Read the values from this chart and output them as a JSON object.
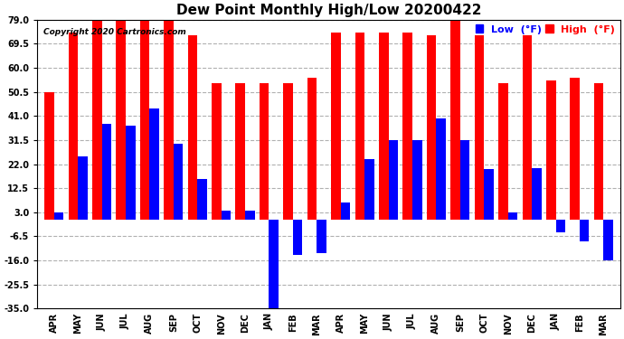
{
  "title": "Dew Point Monthly High/Low 20200422",
  "copyright": "Copyright 2020 Cartronics.com",
  "months": [
    "APR",
    "MAY",
    "JUN",
    "JUL",
    "AUG",
    "SEP",
    "OCT",
    "NOV",
    "DEC",
    "JAN",
    "FEB",
    "MAR",
    "APR",
    "MAY",
    "JUN",
    "JUL",
    "AUG",
    "SEP",
    "OCT",
    "NOV",
    "DEC",
    "JAN",
    "FEB",
    "MAR"
  ],
  "high": [
    50.5,
    74.0,
    79.0,
    79.0,
    79.0,
    79.0,
    73.0,
    54.0,
    54.0,
    54.0,
    54.0,
    56.0,
    74.0,
    74.0,
    74.0,
    74.0,
    73.0,
    79.0,
    73.0,
    54.0,
    73.0,
    55.0,
    56.0,
    54.0
  ],
  "low": [
    3.0,
    25.0,
    38.0,
    37.0,
    44.0,
    30.0,
    16.0,
    3.5,
    3.5,
    -35.0,
    -14.0,
    -13.0,
    7.0,
    24.0,
    31.5,
    31.5,
    40.0,
    31.5,
    20.0,
    3.0,
    20.5,
    -5.0,
    -8.5,
    -16.0
  ],
  "ylim": [
    -35.0,
    79.0
  ],
  "yticks": [
    -35.0,
    -25.5,
    -16.0,
    -6.5,
    3.0,
    12.5,
    22.0,
    31.5,
    41.0,
    50.5,
    60.0,
    69.5,
    79.0
  ],
  "high_color": "#ff0000",
  "low_color": "#0000ff",
  "bar_width": 0.4,
  "background_color": "#ffffff",
  "grid_color": "#b0b0b0",
  "title_fontsize": 11,
  "tick_fontsize": 7,
  "legend_fontsize": 8
}
